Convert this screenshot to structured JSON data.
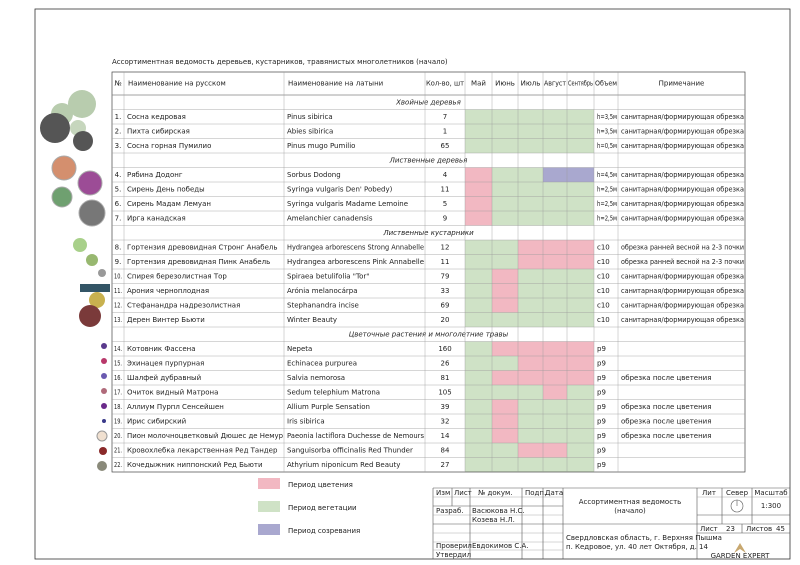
{
  "title": "Ассортиментная ведомость деревьев, кустарников, травянистых многолетников (начало)",
  "table": {
    "columns": [
      "№",
      "Наименование на русском",
      "Наименование на латыни",
      "Кол-во, шт",
      "Май",
      "Июнь",
      "Июль",
      "Август",
      "Сентябрь",
      "Объем",
      "Примечание"
    ],
    "sections": [
      {
        "name": "Хвойные деревья",
        "rows": [
          {
            "num": "1.",
            "ru": "Сосна кедровая",
            "lat": "Pinus sibirica",
            "qty": 7,
            "periods": [
              1,
              1,
              1,
              1,
              1
            ],
            "volume": "h=3,5м",
            "note": "санитарная/формирующая обрезка"
          },
          {
            "num": "2.",
            "ru": "Пихта сибирская",
            "lat": "Abies sibirica",
            "qty": 1,
            "periods": [
              1,
              1,
              1,
              1,
              1
            ],
            "volume": "h=3,5м",
            "note": "санитарная/формирующая обрезка"
          },
          {
            "num": "3.",
            "ru": "Сосна горная Пумилио",
            "lat": "Pinus mugo Pumilio",
            "qty": 65,
            "periods": [
              1,
              1,
              1,
              1,
              1
            ],
            "volume": "h=0,5м",
            "note": "санитарная/формирующая обрезка"
          }
        ]
      },
      {
        "name": "Лиственные деревья",
        "rows": [
          {
            "num": "4.",
            "ru": "Рябина Додонг",
            "lat": "Sorbus Dodong",
            "qty": 4,
            "periods": [
              0,
              1,
              1,
              2,
              2
            ],
            "volume": "h=4,5м",
            "note": "санитарная/формирующая обрезка"
          },
          {
            "num": "5.",
            "ru": "Сирень День победы",
            "lat": "Syringa vulgaris Den' Pobedy)",
            "qty": 11,
            "periods": [
              0,
              1,
              1,
              1,
              1
            ],
            "volume": "h=2,5м",
            "note": "санитарная/формирующая обрезка"
          },
          {
            "num": "6.",
            "ru": "Сирень Мадам Лемуан",
            "lat": "Syringa vulgaris Madame Lemoine",
            "qty": 5,
            "periods": [
              0,
              1,
              1,
              1,
              1
            ],
            "volume": "h=2,5м",
            "note": "санитарная/формирующая обрезка"
          },
          {
            "num": "7.",
            "ru": "Ирга канадская",
            "lat": "Amelanchier canadensis",
            "qty": 9,
            "periods": [
              0,
              1,
              1,
              1,
              1
            ],
            "volume": "h=2,5м",
            "note": "санитарная/формирующая обрезка"
          }
        ]
      },
      {
        "name": "Лиственные кустарники",
        "rows": [
          {
            "num": "8.",
            "ru": "Гортензия древовидная Стронг Анабель",
            "lat": "Hydrangea arborescens Strong Annabelle",
            "qty": 12,
            "periods": [
              1,
              1,
              0,
              0,
              0
            ],
            "volume": "c10",
            "note": "обрезка ранней весной на 2-3 почки"
          },
          {
            "num": "9.",
            "ru": "Гортензия древовидная Пинк Анабель",
            "lat": "Hydrangea arborescens Pink Annabelle",
            "qty": 11,
            "periods": [
              1,
              1,
              0,
              0,
              0
            ],
            "volume": "c10",
            "note": "обрезка ранней весной на 2-3 почки"
          },
          {
            "num": "10.",
            "ru": "Спирея березолистная Тор",
            "lat": "Spiraea betulifolia \"Tor\"",
            "qty": 79,
            "periods": [
              1,
              0,
              1,
              1,
              1
            ],
            "volume": "c10",
            "note": "санитарная/формирующая обрезка"
          },
          {
            "num": "11.",
            "ru": "Арония черноплодная",
            "lat": "Arónia melanocárpa",
            "qty": 33,
            "periods": [
              1,
              0,
              1,
              1,
              1
            ],
            "volume": "c10",
            "note": "санитарная/формирующая обрезка"
          },
          {
            "num": "12.",
            "ru": "Стефанандра надрезолистная",
            "lat": "Stephanandra incise",
            "qty": 69,
            "periods": [
              1,
              0,
              1,
              1,
              1
            ],
            "volume": "c10",
            "note": "санитарная/формирующая обрезка"
          },
          {
            "num": "13.",
            "ru": "Дерен Винтер Бьюти",
            "lat": "Winter Beauty",
            "qty": 20,
            "periods": [
              1,
              1,
              1,
              1,
              1
            ],
            "volume": "c10",
            "note": "санитарная/формирующая обрезка"
          }
        ]
      },
      {
        "name": "Цветочные растения и многолетние травы",
        "rows": [
          {
            "num": "14.",
            "ru": "Котовник Фассена",
            "lat": "Nepeta",
            "qty": 160,
            "periods": [
              1,
              0,
              0,
              0,
              0
            ],
            "volume": "p9"
          },
          {
            "num": "15.",
            "ru": "Эхинацея пурпурная",
            "lat": "Echinacea purpurea",
            "qty": 26,
            "periods": [
              1,
              1,
              0,
              0,
              0
            ],
            "volume": "p9"
          },
          {
            "num": "16.",
            "ru": "Шалфей дубравный",
            "lat": "Salvia nemorosa",
            "qty": 81,
            "periods": [
              1,
              0,
              0,
              0,
              0
            ],
            "volume": "p9",
            "note": "обрезка после цветения"
          },
          {
            "num": "17.",
            "ru": "Очиток видный Матрона",
            "lat": "Sedum telephium Matrona",
            "qty": 105,
            "periods": [
              1,
              1,
              1,
              0,
              1
            ],
            "volume": "p9"
          },
          {
            "num": "18.",
            "ru": "Аллиум Пурпл Сенсейшен",
            "lat": "Allium Purple Sensation",
            "qty": 39,
            "periods": [
              1,
              0,
              1,
              1,
              1
            ],
            "volume": "p9",
            "note": "обрезка после цветения"
          },
          {
            "num": "19.",
            "ru": "Ирис сибирский",
            "lat": "Iris sibirica",
            "qty": 32,
            "periods": [
              1,
              0,
              1,
              1,
              1
            ],
            "volume": "p9",
            "note": "обрезка после цветения"
          },
          {
            "num": "20.",
            "ru": "Пион молочноцветковый Дюшес де Немур",
            "lat": "Paeonia lactiflora Duchesse de Nemours",
            "qty": 14,
            "periods": [
              1,
              0,
              1,
              1,
              1
            ],
            "volume": "p9",
            "note": "обрезка после цветения"
          },
          {
            "num": "21.",
            "ru": "Кровохлебка лекарственная Ред Тандер",
            "lat": "Sanguisorba officinalis Red Thunder",
            "qty": 84,
            "periods": [
              1,
              1,
              0,
              0,
              1
            ],
            "volume": "p9"
          },
          {
            "num": "22.",
            "ru": "Кочедыжник ниппонский Ред Бьюти",
            "lat": "Athyrium niponicum Red Beauty",
            "qty": 27,
            "periods": [
              1,
              1,
              1,
              1,
              1
            ],
            "volume": "p9"
          }
        ]
      }
    ]
  },
  "legend": [
    {
      "name": "Период цветения",
      "color": "#f2b8c2"
    },
    {
      "name": "Период вегетации",
      "color": "#cfe2c6"
    },
    {
      "name": "Период созревания",
      "color": "#a9a8cf"
    }
  ],
  "stamp": {
    "headers": [
      "Изм",
      "Лист",
      "№ докум.",
      "Подп.",
      "Дата"
    ],
    "roles": [
      "Разраб.",
      "Проверил",
      "Утвердил"
    ],
    "people": [
      "Васюкова Н.С.",
      "Козева Н.Л.",
      "Евдокимов С.А."
    ],
    "title": [
      "Ассортиментная ведомость",
      "(начало)"
    ],
    "address": [
      "Свердловская область, г. Верхняя Пышма",
      "п. Кедровое, ул. 40 лет Октября, д. 14"
    ],
    "lit": "Лит",
    "north": "Север",
    "scale_label": "Масштаб",
    "scale": "1:300",
    "sheet_label": "Лист",
    "sheet": 23,
    "sheets_label": "Листов",
    "sheets": 45,
    "logo": "GARDEN EXPERT"
  }
}
